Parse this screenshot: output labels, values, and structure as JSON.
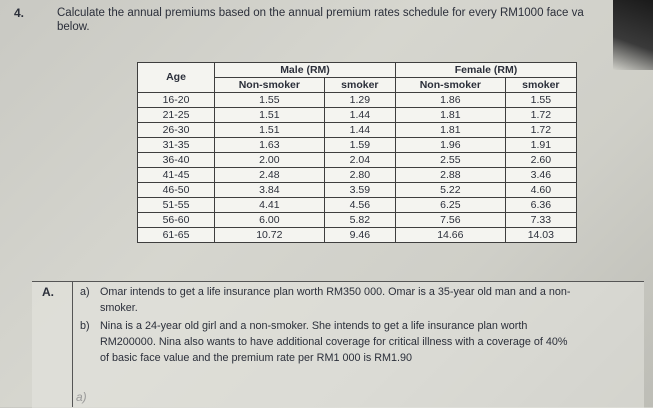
{
  "question": {
    "number": "4.",
    "line1": "Calculate the annual premiums based on the annual premium rates schedule for every RM1000 face va",
    "line2": "below."
  },
  "table": {
    "header_age": "Age",
    "header_male": "Male (RM)",
    "header_female": "Female (RM)",
    "sub_nonsmoker": "Non-smoker",
    "sub_smoker": "smoker",
    "rows": [
      {
        "age": "16-20",
        "m_ns": "1.55",
        "m_s": "1.29",
        "f_ns": "1.86",
        "f_s": "1.55"
      },
      {
        "age": "21-25",
        "m_ns": "1.51",
        "m_s": "1.44",
        "f_ns": "1.81",
        "f_s": "1.72"
      },
      {
        "age": "26-30",
        "m_ns": "1.51",
        "m_s": "1.44",
        "f_ns": "1.81",
        "f_s": "1.72"
      },
      {
        "age": "31-35",
        "m_ns": "1.63",
        "m_s": "1.59",
        "f_ns": "1.96",
        "f_s": "1.91"
      },
      {
        "age": "36-40",
        "m_ns": "2.00",
        "m_s": "2.04",
        "f_ns": "2.55",
        "f_s": "2.60"
      },
      {
        "age": "41-45",
        "m_ns": "2.48",
        "m_s": "2.80",
        "f_ns": "2.88",
        "f_s": "3.46"
      },
      {
        "age": "46-50",
        "m_ns": "3.84",
        "m_s": "3.59",
        "f_ns": "5.22",
        "f_s": "4.60"
      },
      {
        "age": "51-55",
        "m_ns": "4.41",
        "m_s": "4.56",
        "f_ns": "6.25",
        "f_s": "6.36"
      },
      {
        "age": "56-60",
        "m_ns": "6.00",
        "m_s": "5.82",
        "f_ns": "7.56",
        "f_s": "7.33"
      },
      {
        "age": "61-65",
        "m_ns": "10.72",
        "m_s": "9.46",
        "f_ns": "14.66",
        "f_s": "14.03"
      }
    ]
  },
  "partA": {
    "label": "A.",
    "a_mark": "a)",
    "a_line1": "Omar intends to get a life insurance plan worth RM350 000. Omar is a 35-year old man and a non-",
    "a_line2": "smoker.",
    "b_mark": "b)",
    "b_line1": "Nina is a 24-year old girl and a non-smoker. She intends to get a life insurance plan worth",
    "b_line2": "RM200000. Nina also wants to have additional coverage for critical illness with a coverage of 40%",
    "b_line3": "of basic face value and the premium rate per RM1 000 is RM1.90",
    "handwritten": "a)"
  }
}
